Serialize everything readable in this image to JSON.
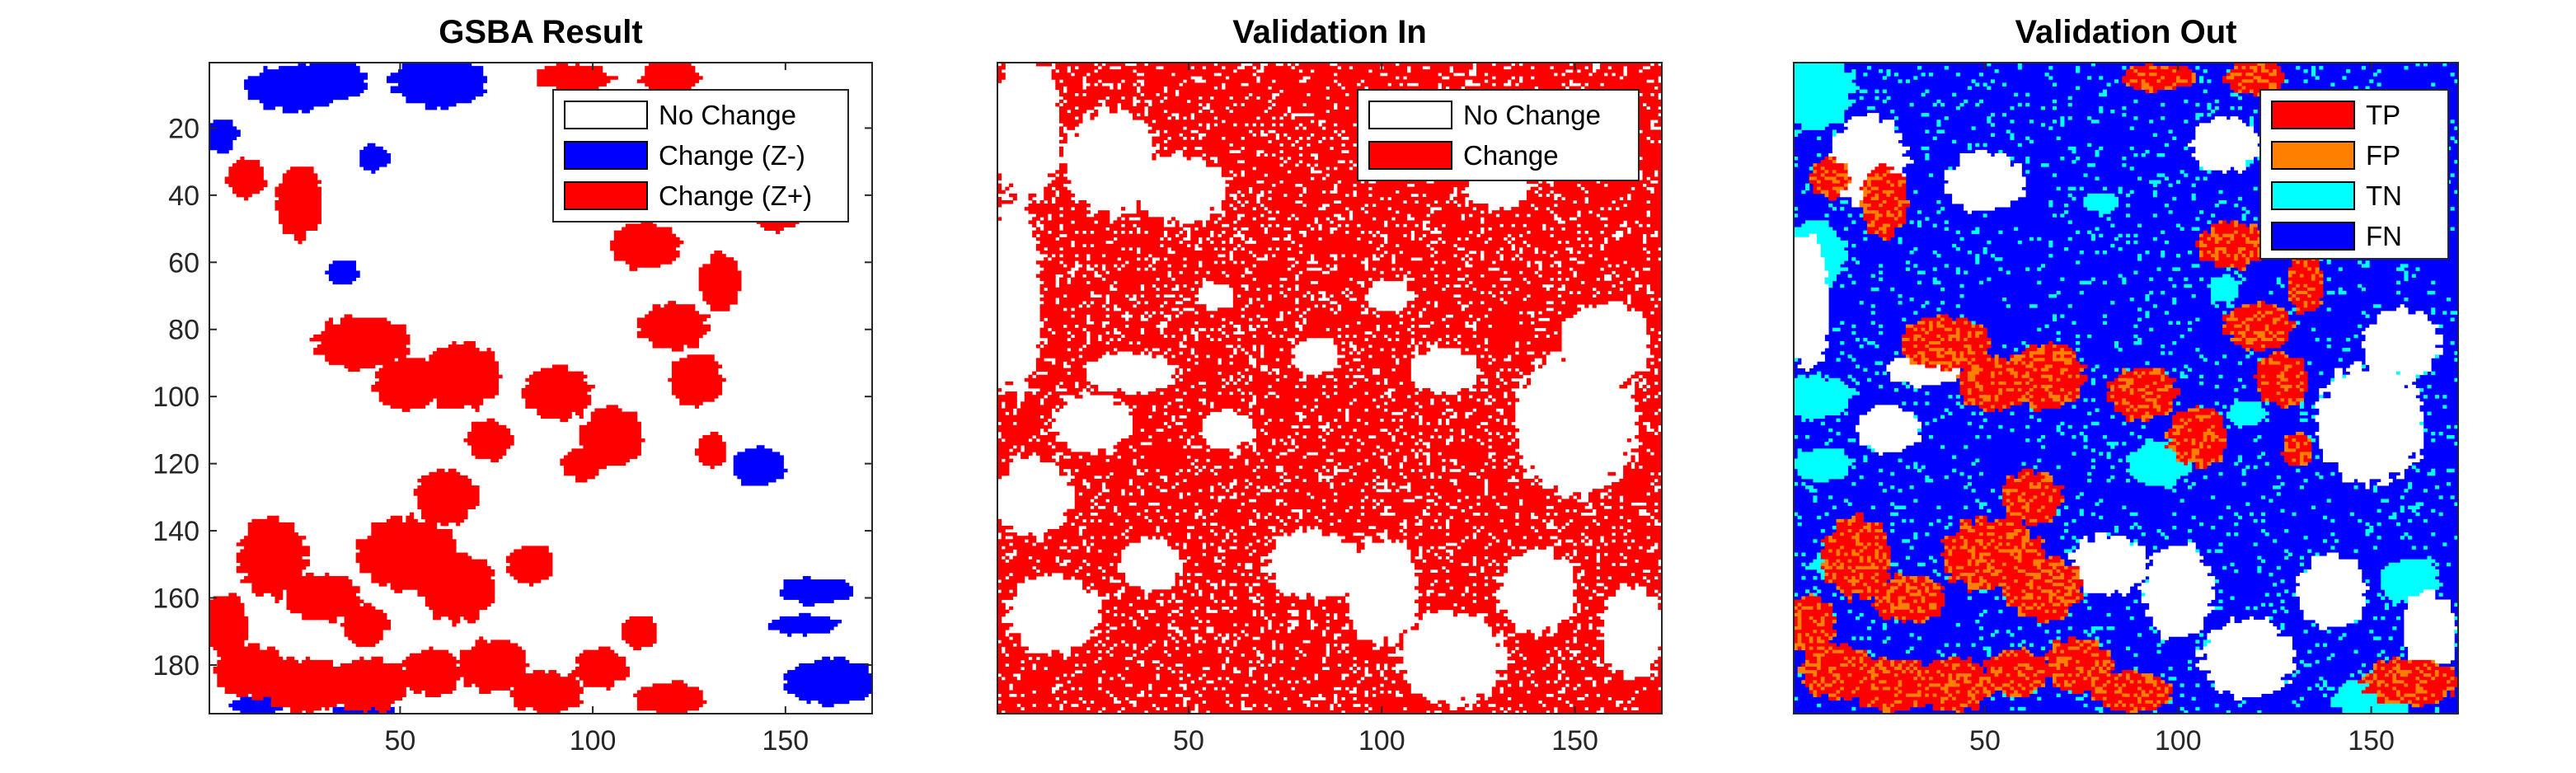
{
  "figure": {
    "background": "#ffffff",
    "axis_color": "#262626"
  },
  "chart_data": [
    {
      "type": "heatmap",
      "title": "GSBA Result",
      "xlim": [
        0.5,
        172.5
      ],
      "ylim": [
        0.5,
        194.5
      ],
      "y_reversed": true,
      "xticks": [
        50,
        100,
        150
      ],
      "yticks": [
        20,
        40,
        60,
        80,
        100,
        120,
        140,
        160,
        180
      ],
      "show_yticks": true,
      "legend_position": "top-right",
      "legend": [
        {
          "label": "No Change",
          "color": "#ffffff"
        },
        {
          "label": "Change (Z-)",
          "color": "#0000ff"
        },
        {
          "label": "Change (Z+)",
          "color": "#ff0000"
        }
      ]
    },
    {
      "type": "heatmap",
      "title": "Validation In",
      "xlim": [
        0.5,
        172.5
      ],
      "ylim": [
        0.5,
        194.5
      ],
      "y_reversed": true,
      "xticks": [
        50,
        100,
        150
      ],
      "yticks": [],
      "show_yticks": false,
      "legend_position": "top-right",
      "legend": [
        {
          "label": "No Change",
          "color": "#ffffff"
        },
        {
          "label": "Change",
          "color": "#ff0000"
        }
      ]
    },
    {
      "type": "heatmap",
      "title": "Validation Out",
      "xlim": [
        0.5,
        172.5
      ],
      "ylim": [
        0.5,
        194.5
      ],
      "y_reversed": true,
      "xticks": [
        50,
        100,
        150
      ],
      "yticks": [],
      "show_yticks": false,
      "legend_position": "top-right",
      "legend": [
        {
          "label": "TP",
          "color": "#ff0000"
        },
        {
          "label": "FP",
          "color": "#ff8000"
        },
        {
          "label": "TN",
          "color": "#00ffff"
        },
        {
          "label": "FN",
          "color": "#0000ff"
        }
      ]
    }
  ]
}
